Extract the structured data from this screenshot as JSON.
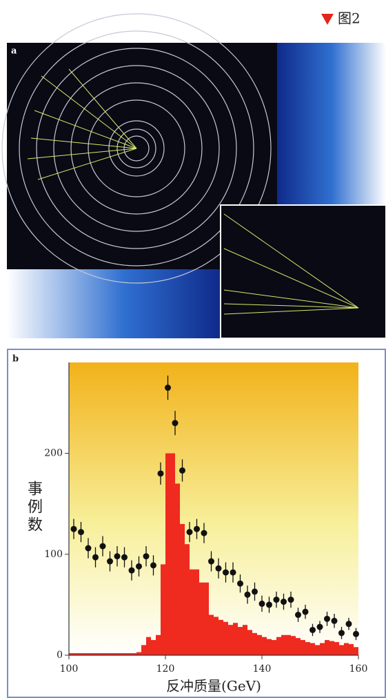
{
  "figure_label": "图2",
  "panel_labels": [
    "a",
    "b"
  ],
  "chart_data": {
    "type": "histogram",
    "xlabel": "反冲质量(GeV)",
    "ylabel": "事例数",
    "color": "#ef2a1f",
    "bins": [
      100,
      101,
      102,
      103,
      104,
      105,
      106,
      107,
      108,
      109,
      110,
      111,
      112,
      113,
      114,
      115,
      116,
      117,
      118,
      119,
      120,
      121,
      122,
      123,
      124,
      125,
      126,
      127,
      128,
      129,
      130,
      131,
      132,
      133,
      134,
      135,
      136,
      137,
      138,
      139,
      140,
      141,
      142,
      143,
      144,
      145,
      146,
      147,
      148,
      149,
      150,
      151,
      152,
      153,
      154,
      155,
      156,
      157,
      158,
      159,
      160
    ],
    "values": [
      2,
      2,
      2,
      2,
      2,
      2,
      2,
      2,
      2,
      2,
      2,
      2,
      2,
      2,
      3,
      10,
      18,
      15,
      20,
      90,
      200,
      200,
      170,
      130,
      110,
      85,
      85,
      72,
      72,
      40,
      38,
      35,
      33,
      30,
      32,
      28,
      30,
      25,
      22,
      20,
      18,
      16,
      15,
      18,
      20,
      20,
      19,
      17,
      15,
      13,
      12,
      10,
      12,
      15,
      14,
      13,
      10,
      12,
      11,
      8
    ],
    "points": {
      "color": "#111111",
      "x": [
        101,
        102.5,
        104,
        105.5,
        107,
        108.5,
        110,
        111.5,
        113,
        114.5,
        116,
        117.5,
        119,
        120.5,
        122,
        123.5,
        125,
        126.5,
        128,
        129.5,
        131,
        132.5,
        134,
        135.5,
        137,
        138.5,
        140,
        141.5,
        143,
        144.5,
        146,
        147.5,
        149,
        150.5,
        152,
        153.5,
        155,
        156.5,
        158,
        159.5
      ],
      "values": [
        125,
        122,
        106,
        97,
        108,
        93,
        98,
        97,
        84,
        88,
        98,
        89,
        180,
        265,
        230,
        183,
        122,
        125,
        121,
        93,
        86,
        82,
        82,
        71,
        60,
        63,
        51,
        50,
        55,
        53,
        55,
        40,
        43,
        25,
        28,
        36,
        34,
        22,
        31,
        21
      ],
      "errors": [
        10,
        10,
        10,
        10,
        10,
        10,
        10,
        10,
        10,
        10,
        10,
        10,
        11,
        12,
        12,
        11,
        10,
        10,
        10,
        10,
        10,
        10,
        10,
        9,
        9,
        9,
        8,
        8,
        8,
        8,
        8,
        7,
        7,
        6,
        6,
        7,
        7,
        6,
        6,
        6
      ]
    },
    "xlim": [
      100,
      160
    ],
    "ylim": [
      0,
      290
    ],
    "xticks": [
      100,
      120,
      140,
      160
    ],
    "yticks": [
      0,
      100,
      200
    ]
  }
}
